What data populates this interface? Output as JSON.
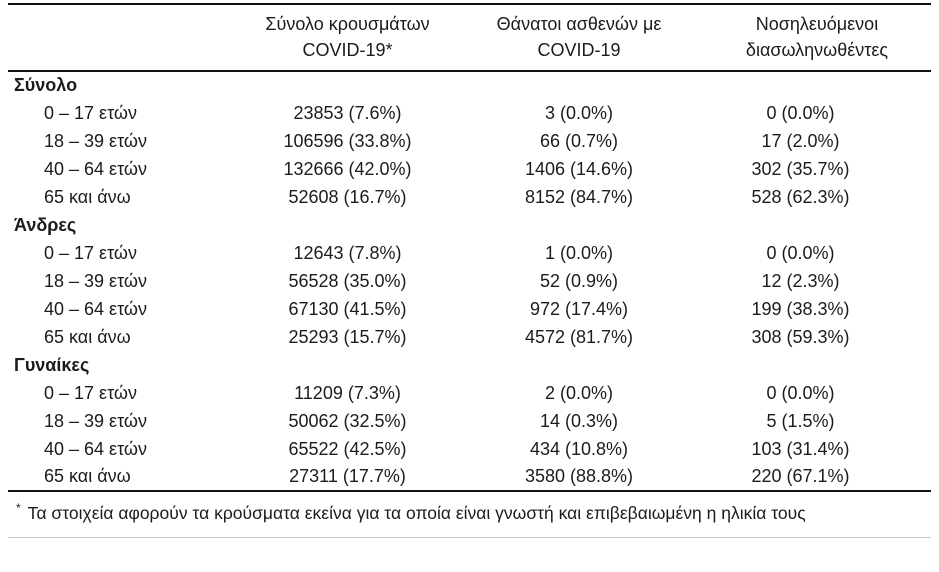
{
  "table": {
    "columns": [
      {
        "line1": "",
        "line2": ""
      },
      {
        "line1": "Σύνολο κρουσμάτων",
        "line2": "COVID-19*"
      },
      {
        "line1": "Θάνατοι ασθενών με",
        "line2": "COVID-19"
      },
      {
        "line1": "Νοσηλευόμενοι",
        "line2": "διασωληνωθέντες"
      }
    ],
    "sections": [
      {
        "label": "Σύνολο",
        "rows": [
          {
            "label": "0 – 17 ετών",
            "cells": [
              "23853 (7.6%)",
              "3 (0.0%)",
              "0 (0.0%)"
            ]
          },
          {
            "label": "18 – 39 ετών",
            "cells": [
              "106596 (33.8%)",
              "66 (0.7%)",
              "17 (2.0%)"
            ]
          },
          {
            "label": "40 – 64 ετών",
            "cells": [
              "132666 (42.0%)",
              "1406 (14.6%)",
              "302 (35.7%)"
            ]
          },
          {
            "label": "65 και άνω",
            "cells": [
              "52608 (16.7%)",
              "8152 (84.7%)",
              "528 (62.3%)"
            ]
          }
        ]
      },
      {
        "label": "Άνδρες",
        "rows": [
          {
            "label": "0 – 17 ετών",
            "cells": [
              "12643 (7.8%)",
              "1 (0.0%)",
              "0 (0.0%)"
            ]
          },
          {
            "label": "18 – 39 ετών",
            "cells": [
              "56528 (35.0%)",
              "52 (0.9%)",
              "12 (2.3%)"
            ]
          },
          {
            "label": "40 – 64 ετών",
            "cells": [
              "67130 (41.5%)",
              "972 (17.4%)",
              "199 (38.3%)"
            ]
          },
          {
            "label": "65 και άνω",
            "cells": [
              "25293 (15.7%)",
              "4572 (81.7%)",
              "308 (59.3%)"
            ]
          }
        ]
      },
      {
        "label": "Γυναίκες",
        "rows": [
          {
            "label": "0 – 17 ετών",
            "cells": [
              "11209 (7.3%)",
              "2 (0.0%)",
              "0 (0.0%)"
            ]
          },
          {
            "label": "18 – 39 ετών",
            "cells": [
              "50062 (32.5%)",
              "14 (0.3%)",
              "5 (1.5%)"
            ]
          },
          {
            "label": "40 – 64 ετών",
            "cells": [
              "65522 (42.5%)",
              "434 (10.8%)",
              "103 (31.4%)"
            ]
          },
          {
            "label": "65 και άνω",
            "cells": [
              "27311 (17.7%)",
              "3580 (88.8%)",
              "220 (67.1%)"
            ]
          }
        ]
      }
    ],
    "footnote_marker": "*",
    "footnote": "Τα στοιχεία αφορούν τα κρούσματα εκείνα για τα οποία είναι γνωστή και επιβεβαιωμένη η ηλικία τους"
  }
}
